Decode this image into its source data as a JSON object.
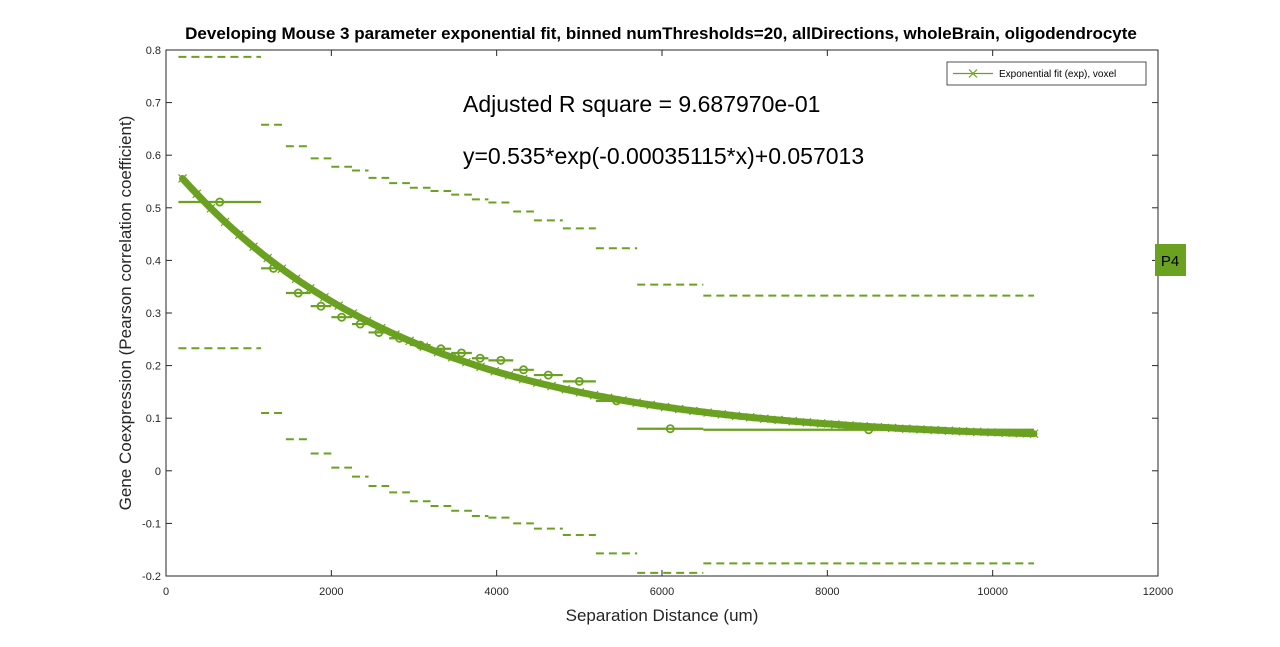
{
  "chart_data": {
    "type": "line",
    "title": "Developing Mouse 3 parameter exponential fit, binned numThresholds=20, allDirections, wholeBrain, oligodendrocyte",
    "xlabel": "Separation Distance (um)",
    "ylabel": "Gene Coexpression (Pearson correlation coefficient)",
    "xlim": [
      0,
      12000
    ],
    "ylim": [
      -0.2,
      0.8
    ],
    "xticks": [
      0,
      2000,
      4000,
      6000,
      8000,
      10000,
      12000
    ],
    "xtick_labels": [
      "0",
      "2000",
      "4000",
      "6000",
      "8000",
      "10000",
      "12000"
    ],
    "yticks": [
      -0.2,
      -0.1,
      0,
      0.1,
      0.2,
      0.3,
      0.4,
      0.5,
      0.6,
      0.7,
      0.8
    ],
    "ytick_labels": [
      "-0.2",
      "-0.1",
      "0",
      "0.1",
      "0.2",
      "0.3",
      "0.4",
      "0.5",
      "0.6",
      "0.7",
      "0.8"
    ],
    "grid": false,
    "legend_position": "top-right",
    "legend_entries": [
      "Exponential fit (exp), voxel"
    ],
    "annotations": [
      "Adjusted R square = 9.687970e-01",
      "y=0.535*exp(-0.00035115*x)+0.057013"
    ],
    "badge": "P4",
    "color": "#6aa121",
    "fit": {
      "a": 0.535,
      "b": -0.00035115,
      "c": 0.057013,
      "x_range": [
        200,
        10500
      ]
    },
    "bins": [
      {
        "x_range": [
          150,
          1150
        ],
        "mean": 0.511,
        "upper": 0.787,
        "lower": 0.233
      },
      {
        "x_range": [
          1150,
          1450
        ],
        "mean": 0.385,
        "upper": 0.658,
        "lower": 0.11
      },
      {
        "x_range": [
          1450,
          1750
        ],
        "mean": 0.338,
        "upper": 0.617,
        "lower": 0.06
      },
      {
        "x_range": [
          1750,
          2000
        ],
        "mean": 0.313,
        "upper": 0.594,
        "lower": 0.033
      },
      {
        "x_range": [
          2000,
          2250
        ],
        "mean": 0.292,
        "upper": 0.578,
        "lower": 0.006
      },
      {
        "x_range": [
          2250,
          2450
        ],
        "mean": 0.279,
        "upper": 0.571,
        "lower": -0.011
      },
      {
        "x_range": [
          2450,
          2700
        ],
        "mean": 0.263,
        "upper": 0.557,
        "lower": -0.029
      },
      {
        "x_range": [
          2700,
          2950
        ],
        "mean": 0.252,
        "upper": 0.547,
        "lower": -0.041
      },
      {
        "x_range": [
          2950,
          3200
        ],
        "mean": 0.239,
        "upper": 0.538,
        "lower": -0.058
      },
      {
        "x_range": [
          3200,
          3450
        ],
        "mean": 0.232,
        "upper": 0.532,
        "lower": -0.067
      },
      {
        "x_range": [
          3450,
          3700
        ],
        "mean": 0.224,
        "upper": 0.525,
        "lower": -0.076
      },
      {
        "x_range": [
          3700,
          3900
        ],
        "mean": 0.214,
        "upper": 0.516,
        "lower": -0.086
      },
      {
        "x_range": [
          3900,
          4200
        ],
        "mean": 0.21,
        "upper": 0.51,
        "lower": -0.089
      },
      {
        "x_range": [
          4200,
          4450
        ],
        "mean": 0.192,
        "upper": 0.493,
        "lower": -0.1
      },
      {
        "x_range": [
          4450,
          4800
        ],
        "mean": 0.182,
        "upper": 0.476,
        "lower": -0.11
      },
      {
        "x_range": [
          4800,
          5200
        ],
        "mean": 0.17,
        "upper": 0.461,
        "lower": -0.122
      },
      {
        "x_range": [
          5200,
          5700
        ],
        "mean": 0.133,
        "upper": 0.423,
        "lower": -0.157
      },
      {
        "x_range": [
          5700,
          6500
        ],
        "mean": 0.08,
        "upper": 0.354,
        "lower": -0.194
      },
      {
        "x_range": [
          6500,
          10500
        ],
        "mean": 0.078,
        "upper": 0.333,
        "lower": -0.176
      }
    ]
  }
}
